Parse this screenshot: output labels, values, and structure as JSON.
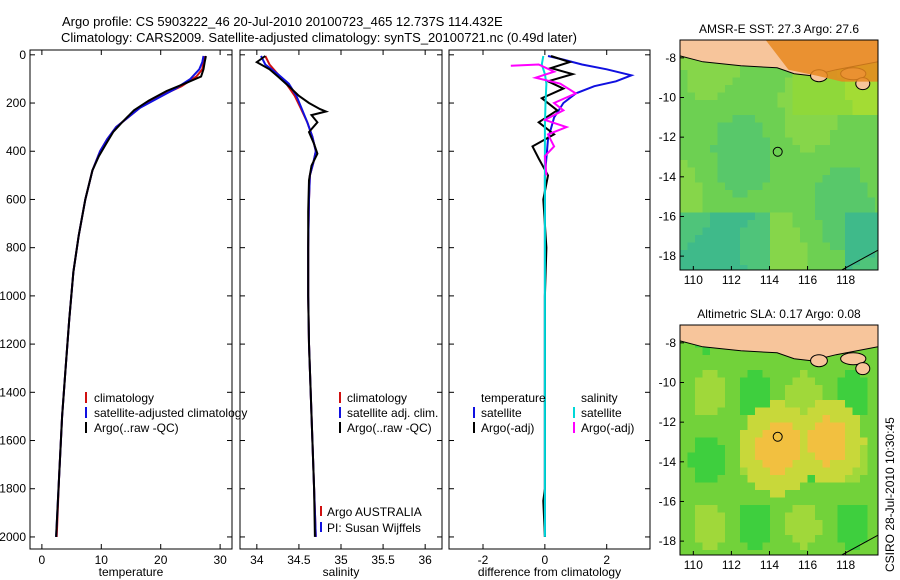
{
  "title_line1": "Argo profile: CS 5903222_46 20-Jul-2010 20100723_465 12.737S 114.432E",
  "title_line2": "Climatology: CARS2009. Satellite-adjusted climatology: synTS_20100721.nc (0.49d later)",
  "credit": "CSIRO 28-Jul-2010 10:30:45",
  "colors": {
    "clim": "#d01010",
    "sat": "#1010e0",
    "argo": "#000000",
    "cyan": "#00d8d8",
    "magenta": "#ff00ff"
  },
  "chart_data": [
    {
      "id": "temperature",
      "type": "line",
      "xlabel": "temperature",
      "ylabel": "",
      "xlim": [
        -2,
        32
      ],
      "ylim": [
        2050,
        -20
      ],
      "xticks": [
        0,
        10,
        20,
        30
      ],
      "yticks": [
        0,
        200,
        400,
        600,
        800,
        1000,
        1200,
        1400,
        1600,
        1800,
        2000
      ],
      "legend": [
        "climatology",
        "satellite-adjusted climatology",
        "Argo(..raw -QC)"
      ],
      "series": [
        {
          "name": "climatology",
          "color": "clim",
          "points": [
            [
              27.3,
              5
            ],
            [
              27.2,
              30
            ],
            [
              27.0,
              60
            ],
            [
              26.0,
              90
            ],
            [
              23.5,
              130
            ],
            [
              20.0,
              170
            ],
            [
              17.0,
              210
            ],
            [
              14.5,
              260
            ],
            [
              12.5,
              300
            ],
            [
              11.0,
              350
            ],
            [
              9.8,
              400
            ],
            [
              8.5,
              480
            ],
            [
              7.3,
              600
            ],
            [
              6.2,
              750
            ],
            [
              5.3,
              900
            ],
            [
              4.6,
              1100
            ],
            [
              4.0,
              1300
            ],
            [
              3.4,
              1500
            ],
            [
              2.9,
              1750
            ],
            [
              2.5,
              2000
            ]
          ]
        },
        {
          "name": "satellite-adjusted climatology",
          "color": "sat",
          "points": [
            [
              27.2,
              5
            ],
            [
              27.0,
              30
            ],
            [
              26.5,
              60
            ],
            [
              25.0,
              100
            ],
            [
              22.5,
              140
            ],
            [
              19.5,
              180
            ],
            [
              16.5,
              220
            ],
            [
              14.5,
              260
            ],
            [
              12.5,
              300
            ],
            [
              11.0,
              350
            ],
            [
              9.8,
              400
            ],
            [
              8.5,
              480
            ],
            [
              7.3,
              600
            ],
            [
              6.2,
              750
            ],
            [
              5.3,
              900
            ],
            [
              4.6,
              1100
            ],
            [
              4.0,
              1300
            ],
            [
              3.4,
              1500
            ],
            [
              2.9,
              1750
            ],
            [
              2.4,
              2000
            ]
          ]
        },
        {
          "name": "Argo(..raw -QC)",
          "color": "argo",
          "points": [
            [
              27.6,
              5
            ],
            [
              27.4,
              30
            ],
            [
              27.2,
              60
            ],
            [
              26.8,
              90
            ],
            [
              24.0,
              120
            ],
            [
              21.0,
              150
            ],
            [
              18.0,
              190
            ],
            [
              15.5,
              230
            ],
            [
              13.5,
              280
            ],
            [
              12.0,
              320
            ],
            [
              10.8,
              370
            ],
            [
              9.6,
              420
            ],
            [
              8.5,
              480
            ],
            [
              7.3,
              600
            ],
            [
              6.2,
              750
            ],
            [
              5.3,
              900
            ],
            [
              4.6,
              1100
            ],
            [
              4.0,
              1300
            ],
            [
              3.4,
              1500
            ],
            [
              2.9,
              1750
            ],
            [
              2.4,
              2000
            ]
          ]
        }
      ]
    },
    {
      "id": "salinity",
      "type": "line",
      "xlabel": "salinity",
      "ylabel": "",
      "xlim": [
        33.8,
        36.2
      ],
      "ylim": [
        2050,
        -20
      ],
      "xticks": [
        34,
        34.5,
        35,
        35.5,
        36
      ],
      "xtick_labels": [
        "34",
        "34.5",
        "35",
        "35.5",
        "36"
      ],
      "legend": [
        "climatology",
        "satellite adj. clim.",
        "Argo(..raw -QC)"
      ],
      "annotations": [
        "Argo AUSTRALIA",
        "PI: Susan Wijffels"
      ],
      "series": [
        {
          "name": "climatology",
          "color": "clim",
          "points": [
            [
              34.1,
              5
            ],
            [
              34.15,
              40
            ],
            [
              34.25,
              80
            ],
            [
              34.35,
              120
            ],
            [
              34.45,
              170
            ],
            [
              34.52,
              220
            ],
            [
              34.6,
              280
            ],
            [
              34.66,
              340
            ],
            [
              34.7,
              400
            ],
            [
              34.67,
              450
            ],
            [
              34.63,
              500
            ],
            [
              34.62,
              600
            ],
            [
              34.61,
              800
            ],
            [
              34.61,
              1000
            ],
            [
              34.62,
              1200
            ],
            [
              34.64,
              1400
            ],
            [
              34.66,
              1600
            ],
            [
              34.68,
              1800
            ],
            [
              34.7,
              2000
            ]
          ]
        },
        {
          "name": "satellite adj. clim.",
          "color": "sat",
          "points": [
            [
              34.05,
              5
            ],
            [
              34.1,
              40
            ],
            [
              34.25,
              80
            ],
            [
              34.38,
              120
            ],
            [
              34.47,
              170
            ],
            [
              34.53,
              220
            ],
            [
              34.6,
              280
            ],
            [
              34.66,
              340
            ],
            [
              34.7,
              400
            ],
            [
              34.67,
              450
            ],
            [
              34.63,
              500
            ],
            [
              34.62,
              600
            ],
            [
              34.61,
              800
            ],
            [
              34.61,
              1000
            ],
            [
              34.62,
              1200
            ],
            [
              34.64,
              1400
            ],
            [
              34.66,
              1600
            ],
            [
              34.68,
              1800
            ],
            [
              34.7,
              2000
            ]
          ]
        },
        {
          "name": "Argo(..raw -QC)",
          "color": "argo",
          "points": [
            [
              34.1,
              5
            ],
            [
              34.0,
              30
            ],
            [
              34.15,
              60
            ],
            [
              34.25,
              90
            ],
            [
              34.38,
              130
            ],
            [
              34.5,
              170
            ],
            [
              34.62,
              200
            ],
            [
              34.75,
              225
            ],
            [
              34.82,
              235
            ],
            [
              34.65,
              250
            ],
            [
              34.72,
              280
            ],
            [
              34.62,
              320
            ],
            [
              34.68,
              370
            ],
            [
              34.72,
              410
            ],
            [
              34.65,
              460
            ],
            [
              34.62,
              520
            ],
            [
              34.61,
              650
            ],
            [
              34.61,
              800
            ],
            [
              34.61,
              1000
            ],
            [
              34.62,
              1200
            ],
            [
              34.64,
              1400
            ],
            [
              34.66,
              1600
            ],
            [
              34.68,
              1800
            ],
            [
              34.69,
              2000
            ]
          ]
        }
      ]
    },
    {
      "id": "difference",
      "type": "line",
      "xlabel": "difference from climatology",
      "ylabel": "",
      "xlim": [
        -3.1,
        3.4
      ],
      "ylim": [
        2050,
        -20
      ],
      "xticks": [
        -2,
        0,
        2
      ],
      "legend_left_title": "temperature",
      "legend_left": [
        "satellite",
        "Argo(-adj)"
      ],
      "legend_right_title": "salinity",
      "legend_right": [
        "satellite",
        "Argo(-adj)"
      ],
      "series": [
        {
          "name": "temperature satellite",
          "color": "sat",
          "points": [
            [
              0.1,
              5
            ],
            [
              0.6,
              20
            ],
            [
              1.2,
              40
            ],
            [
              2.0,
              60
            ],
            [
              2.8,
              85
            ],
            [
              2.3,
              110
            ],
            [
              1.6,
              130
            ],
            [
              1.0,
              160
            ],
            [
              0.6,
              200
            ],
            [
              0.3,
              260
            ],
            [
              0.1,
              350
            ],
            [
              0.0,
              500
            ],
            [
              0.0,
              800
            ],
            [
              0.0,
              1200
            ],
            [
              0.0,
              1600
            ],
            [
              0.0,
              2000
            ]
          ]
        },
        {
          "name": "temperature Argo(-adj)",
          "color": "argo",
          "points": [
            [
              0.2,
              5
            ],
            [
              0.8,
              30
            ],
            [
              0.2,
              55
            ],
            [
              0.9,
              80
            ],
            [
              0.1,
              110
            ],
            [
              0.6,
              140
            ],
            [
              -0.1,
              180
            ],
            [
              0.4,
              230
            ],
            [
              -0.2,
              280
            ],
            [
              0.3,
              330
            ],
            [
              -0.4,
              380
            ],
            [
              -0.2,
              430
            ],
            [
              0.1,
              500
            ],
            [
              -0.05,
              600
            ],
            [
              0.05,
              800
            ],
            [
              0.0,
              1000
            ],
            [
              0.0,
              1200
            ],
            [
              0.0,
              1400
            ],
            [
              0.0,
              1600
            ],
            [
              0.0,
              1800
            ],
            [
              -0.05,
              1850
            ],
            [
              0.0,
              2000
            ]
          ]
        },
        {
          "name": "salinity satellite",
          "color": "cyan",
          "points": [
            [
              -0.05,
              5
            ],
            [
              -0.1,
              40
            ],
            [
              0.0,
              80
            ],
            [
              0.05,
              120
            ],
            [
              0.02,
              200
            ],
            [
              0.0,
              300
            ],
            [
              0.0,
              500
            ],
            [
              0.0,
              800
            ],
            [
              0.0,
              1200
            ],
            [
              0.0,
              1600
            ],
            [
              0.0,
              2000
            ]
          ]
        },
        {
          "name": "salinity Argo(-adj)",
          "color": "magenta",
          "points": [
            [
              -1.1,
              45
            ],
            [
              -0.2,
              40
            ],
            [
              0.3,
              70
            ],
            [
              -0.3,
              95
            ],
            [
              0.5,
              120
            ],
            [
              1.0,
              160
            ],
            [
              0.3,
              200
            ],
            [
              0.6,
              230
            ],
            [
              0.0,
              270
            ],
            [
              0.7,
              300
            ],
            [
              0.1,
              330
            ],
            [
              0.3,
              380
            ],
            [
              0.0,
              420
            ],
            [
              0.05,
              500
            ]
          ]
        }
      ]
    },
    {
      "id": "sst_map",
      "type": "heatmap",
      "title": "AMSR-E SST: 27.3 Argo: 27.6",
      "xlim": [
        109.3,
        119.7
      ],
      "ylim": [
        -18.7,
        -7.1
      ],
      "xticks": [
        110,
        112,
        114,
        116,
        118
      ],
      "yticks": [
        -8,
        -10,
        -12,
        -14,
        -16,
        -18
      ],
      "marker": {
        "lon": 114.432,
        "lat": -12.737
      }
    },
    {
      "id": "sla_map",
      "type": "heatmap",
      "title": "Altimetric SLA: 0.17 Argo: 0.08",
      "xlim": [
        109.3,
        119.7
      ],
      "ylim": [
        -18.7,
        -7.1
      ],
      "xticks": [
        110,
        112,
        114,
        116,
        118
      ],
      "yticks": [
        -8,
        -10,
        -12,
        -14,
        -16,
        -18
      ],
      "marker": {
        "lon": 114.432,
        "lat": -12.737
      }
    }
  ]
}
